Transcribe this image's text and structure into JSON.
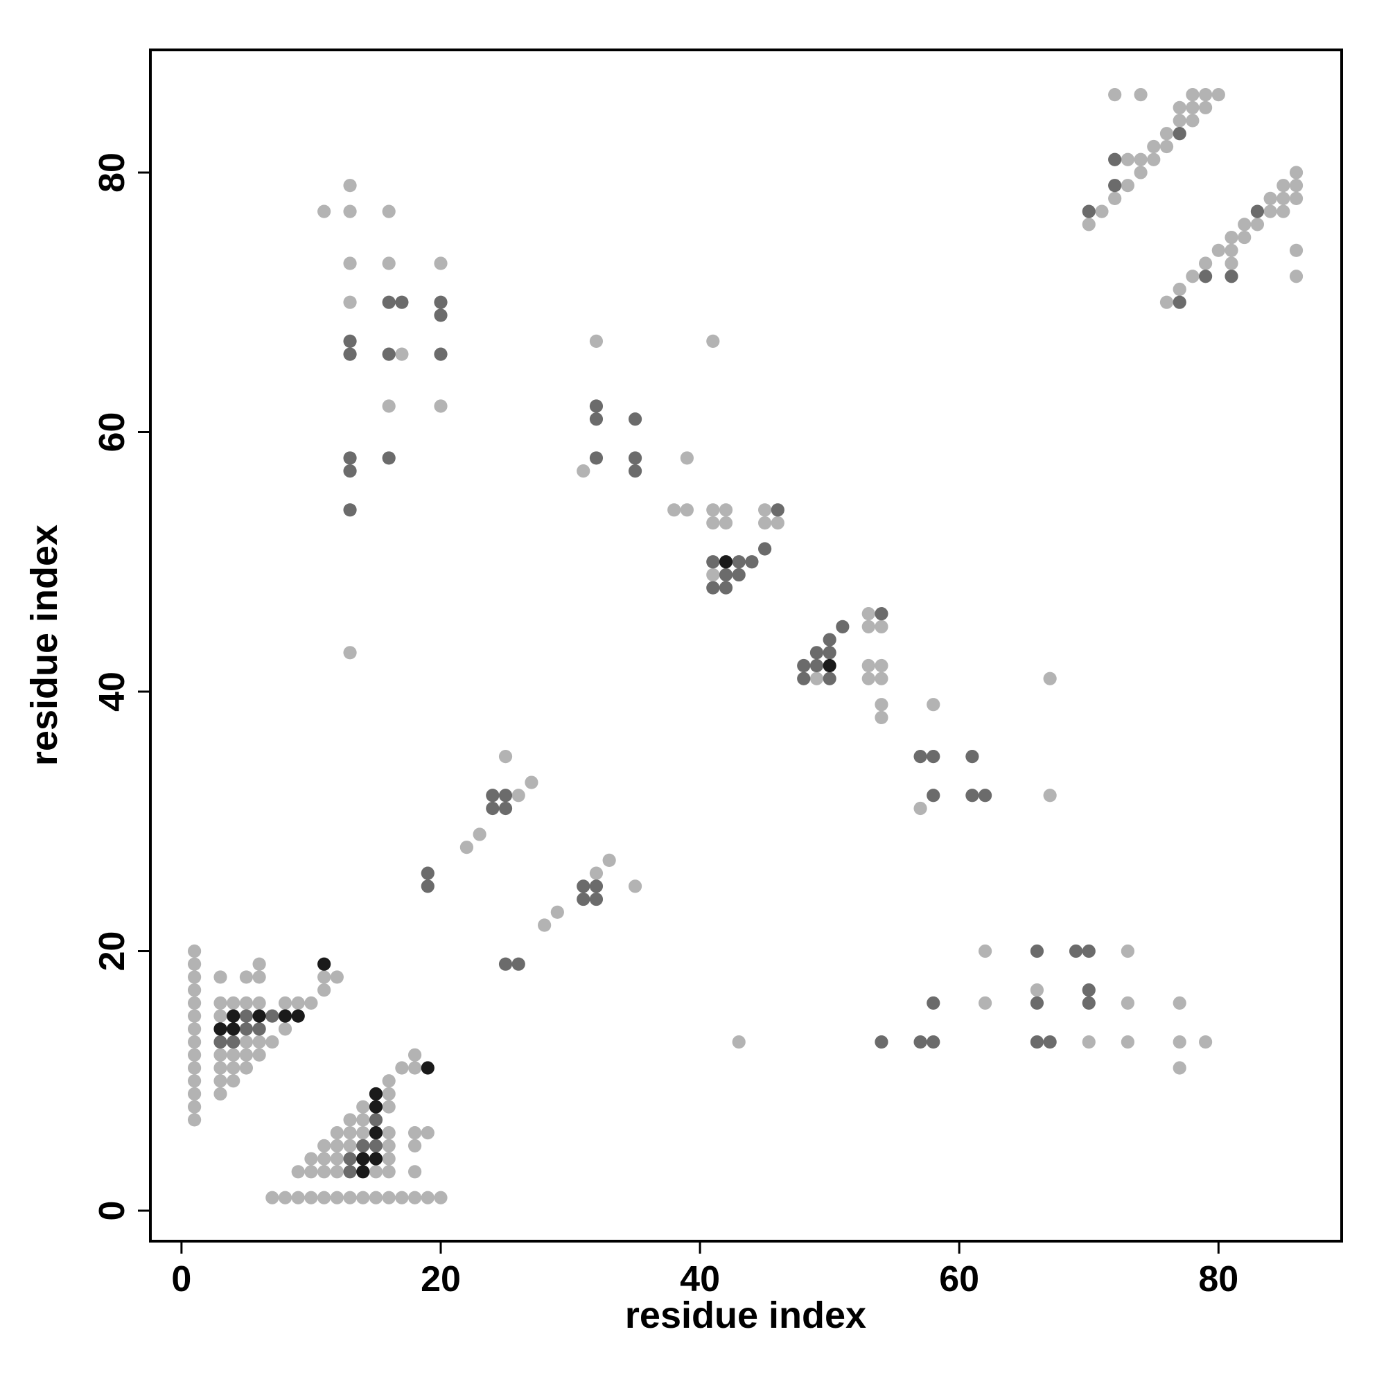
{
  "chart_data": {
    "type": "scatter",
    "x_label": "residue index",
    "y_label": "residue index",
    "xlim": [
      -2.4,
      89.5
    ],
    "ylim": [
      -2.35,
      89.45
    ],
    "xticks": [
      0,
      20,
      40,
      60,
      80
    ],
    "yticks": [
      0,
      20,
      40,
      60,
      80
    ],
    "series": [
      {
        "color": "#b3b3b3",
        "x": [
          1,
          1,
          1,
          1,
          1,
          1,
          1,
          1,
          1,
          1,
          1,
          1,
          1,
          1,
          3,
          3,
          3,
          3,
          3,
          3,
          3,
          4,
          4,
          4,
          4,
          5,
          5,
          5,
          5,
          5,
          6,
          6,
          6,
          6,
          6,
          7,
          8,
          8,
          9,
          10,
          11,
          11,
          12,
          7,
          8,
          9,
          10,
          11,
          12,
          13,
          14,
          15,
          16,
          17,
          18,
          19,
          20,
          9,
          10,
          10,
          11,
          11,
          11,
          12,
          12,
          12,
          12,
          13,
          13,
          13,
          14,
          14,
          14,
          15,
          16,
          16,
          16,
          16,
          16,
          16,
          16,
          17,
          18,
          18,
          18,
          18,
          18,
          19,
          22,
          23,
          25,
          26,
          27,
          28,
          29,
          32,
          33,
          35,
          11,
          13,
          13,
          13,
          13,
          13,
          16,
          16,
          16,
          17,
          20,
          20,
          32,
          31,
          39,
          38,
          39,
          41,
          41,
          41,
          42,
          42,
          45,
          45,
          46,
          41,
          49,
          53,
          53,
          54,
          53,
          54,
          53,
          54,
          54,
          54,
          58,
          57,
          67,
          67,
          62,
          62,
          43,
          66,
          70,
          73,
          73,
          73,
          77,
          77,
          77,
          79,
          72,
          74,
          78,
          79,
          80,
          77,
          78,
          79,
          77,
          78,
          76,
          75,
          76,
          73,
          74,
          75,
          74,
          73,
          72,
          71,
          70,
          86,
          85,
          86,
          84,
          85,
          86,
          84,
          85,
          82,
          83,
          81,
          82,
          80,
          81,
          86,
          79,
          81,
          78,
          86,
          77,
          76
        ],
        "values": [
          7,
          8,
          9,
          10,
          11,
          12,
          13,
          14,
          15,
          16,
          17,
          18,
          19,
          20,
          18,
          16,
          15,
          12,
          11,
          10,
          9,
          16,
          12,
          11,
          10,
          18,
          16,
          13,
          12,
          11,
          19,
          18,
          16,
          13,
          12,
          13,
          16,
          14,
          16,
          16,
          18,
          17,
          18,
          1,
          1,
          1,
          1,
          1,
          1,
          1,
          1,
          1,
          1,
          1,
          1,
          1,
          1,
          3,
          4,
          3,
          5,
          4,
          3,
          6,
          5,
          4,
          3,
          7,
          6,
          5,
          8,
          7,
          6,
          3,
          10,
          9,
          8,
          6,
          5,
          4,
          3,
          11,
          12,
          11,
          6,
          5,
          3,
          6,
          28,
          29,
          35,
          32,
          33,
          22,
          23,
          26,
          27,
          25,
          77,
          79,
          77,
          73,
          70,
          43,
          77,
          73,
          62,
          66,
          73,
          62,
          67,
          57,
          58,
          54,
          54,
          67,
          54,
          53,
          54,
          53,
          54,
          53,
          53,
          49,
          41,
          46,
          45,
          45,
          42,
          42,
          41,
          41,
          39,
          38,
          39,
          31,
          41,
          32,
          20,
          16,
          13,
          17,
          13,
          20,
          16,
          13,
          16,
          13,
          11,
          13,
          86,
          86,
          86,
          86,
          86,
          85,
          85,
          85,
          84,
          84,
          83,
          82,
          82,
          81,
          81,
          81,
          80,
          79,
          78,
          77,
          76,
          80,
          79,
          79,
          78,
          78,
          78,
          77,
          77,
          76,
          76,
          75,
          75,
          74,
          74,
          74,
          73,
          73,
          72,
          72,
          71,
          70
        ]
      },
      {
        "color": "#6b6b6b",
        "x": [
          3,
          4,
          5,
          5,
          6,
          7,
          13,
          13,
          14,
          15,
          15,
          19,
          19,
          24,
          24,
          25,
          25,
          25,
          26,
          31,
          31,
          32,
          32,
          13,
          13,
          13,
          13,
          13,
          16,
          16,
          16,
          17,
          20,
          20,
          20,
          32,
          32,
          32,
          35,
          35,
          35,
          46,
          45,
          41,
          43,
          44,
          42,
          43,
          41,
          42,
          51,
          50,
          49,
          50,
          48,
          49,
          48,
          50,
          54,
          57,
          58,
          58,
          61,
          61,
          62,
          54,
          57,
          58,
          58,
          66,
          66,
          66,
          67,
          69,
          70,
          70,
          70,
          77,
          72,
          72,
          70,
          83,
          79,
          81,
          77
        ],
        "values": [
          13,
          13,
          15,
          14,
          14,
          15,
          4,
          3,
          5,
          7,
          5,
          26,
          25,
          32,
          31,
          32,
          31,
          19,
          19,
          25,
          24,
          25,
          24,
          67,
          66,
          58,
          57,
          54,
          70,
          66,
          58,
          70,
          70,
          69,
          66,
          62,
          61,
          58,
          61,
          58,
          57,
          54,
          51,
          50,
          50,
          50,
          49,
          49,
          48,
          48,
          45,
          44,
          43,
          43,
          42,
          42,
          41,
          41,
          46,
          35,
          35,
          32,
          35,
          32,
          32,
          13,
          13,
          13,
          16,
          20,
          16,
          13,
          13,
          20,
          20,
          17,
          16,
          83,
          81,
          79,
          77,
          77,
          72,
          72,
          70
        ]
      },
      {
        "color": "#1a1a1a",
        "x": [
          3,
          4,
          4,
          6,
          8,
          9,
          11,
          14,
          14,
          15,
          15,
          15,
          15,
          19,
          42,
          50
        ],
        "values": [
          14,
          15,
          14,
          15,
          15,
          15,
          19,
          4,
          3,
          9,
          8,
          6,
          4,
          11,
          50,
          42
        ]
      }
    ]
  }
}
